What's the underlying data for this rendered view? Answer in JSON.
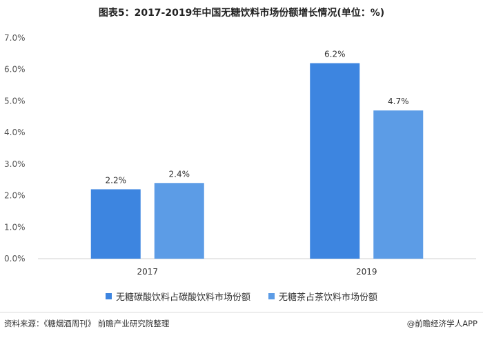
{
  "chart_data": {
    "type": "bar",
    "title": "图表5：2017-2019年中国无糖饮料市场份额增长情况(单位：%)",
    "xlabel": "",
    "ylabel": "",
    "categories": [
      "2017",
      "2019"
    ],
    "series": [
      {
        "name": "无糖碳酸饮料占碳酸饮料市场份额",
        "values": [
          2.2,
          6.2
        ],
        "labels": [
          "2.2%",
          "6.2%"
        ],
        "color": "#3d85e0"
      },
      {
        "name": "无糖茶占茶饮料市场份额",
        "values": [
          2.4,
          4.7
        ],
        "labels": [
          "2.4%",
          "4.7%"
        ],
        "color": "#5c9ce6"
      }
    ],
    "ylim": [
      0,
      7
    ],
    "yticks": [
      "0.0%",
      "1.0%",
      "2.0%",
      "3.0%",
      "4.0%",
      "5.0%",
      "6.0%",
      "7.0%"
    ],
    "grid": false,
    "legend_position": "bottom"
  },
  "footer": {
    "source": "资料来源：《糖烟酒周刊》 前瞻产业研究院整理",
    "brand": "@前瞻经济学人APP"
  }
}
